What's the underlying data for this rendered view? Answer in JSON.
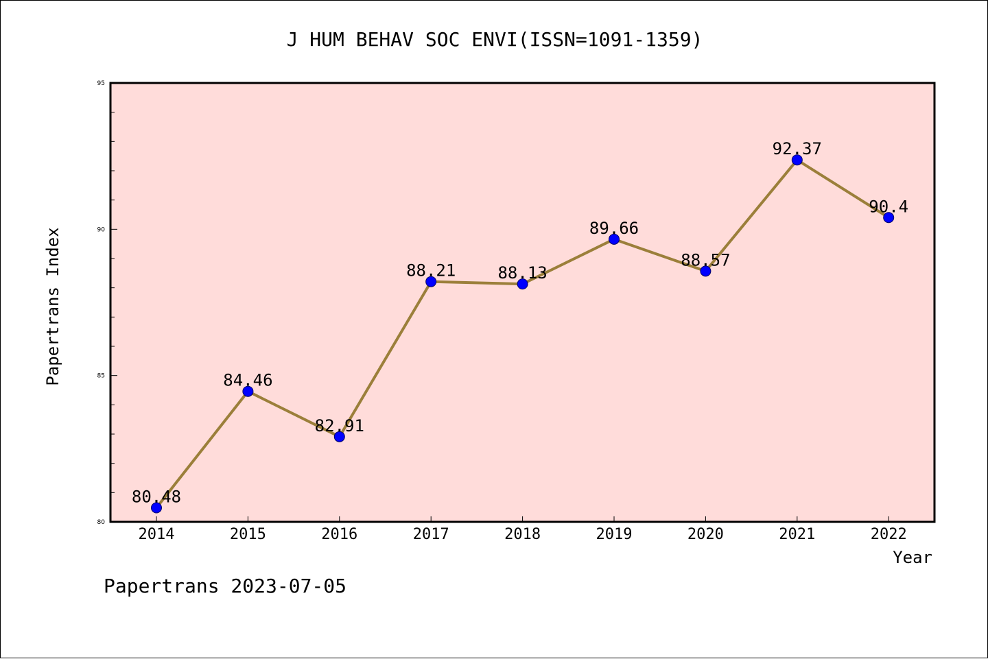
{
  "chart_data": {
    "type": "line",
    "title": "J HUM BEHAV SOC ENVI(ISSN=1091-1359)",
    "xlabel": "Year",
    "ylabel": "Papertrans Index",
    "categories": [
      "2014",
      "2015",
      "2016",
      "2017",
      "2018",
      "2019",
      "2020",
      "2021",
      "2022"
    ],
    "values": [
      80.48,
      84.46,
      82.91,
      88.21,
      88.13,
      89.66,
      88.57,
      92.37,
      90.4
    ],
    "data_labels": [
      "80.48",
      "84.46",
      "82.91",
      "88.21",
      "88.13",
      "89.66",
      "88.57",
      "92.37",
      "90.4"
    ],
    "ylim": [
      80,
      95
    ],
    "yticks": [
      80,
      85,
      90,
      95
    ],
    "y_minor_step": 1,
    "grid": false,
    "legend": "none",
    "colors": {
      "plot_background": "#FFDCDA",
      "line": "#9B7F3A",
      "marker": "#0000FF",
      "axis": "#000000"
    }
  },
  "footer": {
    "text": "Papertrans 2023-07-05"
  }
}
